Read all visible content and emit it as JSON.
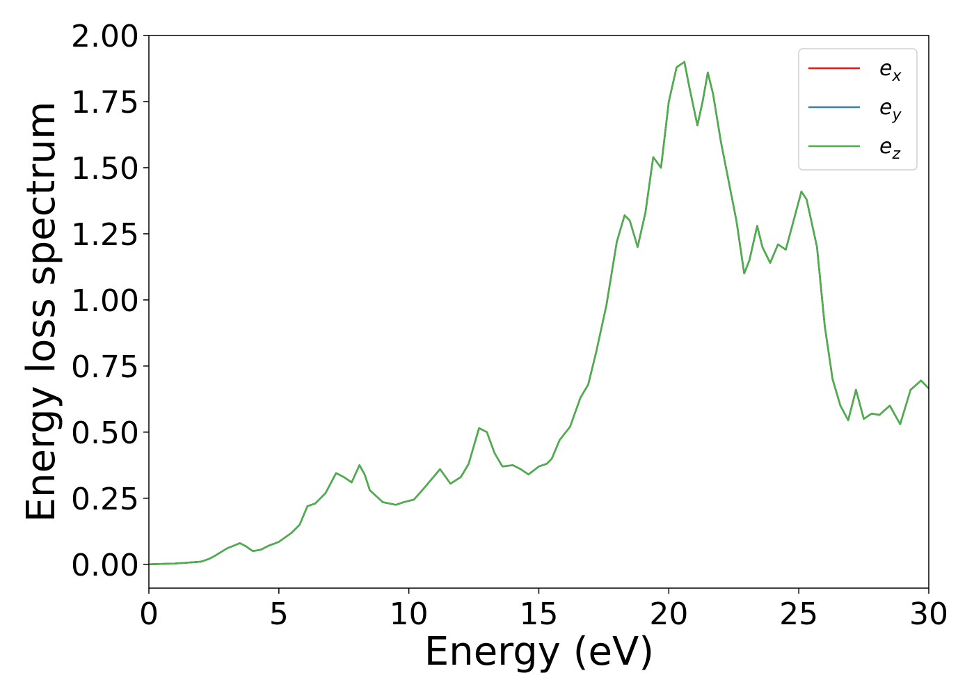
{
  "chart_data": {
    "type": "line",
    "xlabel": "Energy (eV)",
    "ylabel": "Energy loss spectrum",
    "x": [
      0,
      1,
      2,
      2.3,
      2.5,
      3,
      3.5,
      3.7,
      4,
      4.3,
      4.6,
      5,
      5.5,
      5.8,
      6.1,
      6.4,
      6.8,
      7.2,
      7.5,
      7.8,
      8.1,
      8.3,
      8.5,
      9,
      9.5,
      9.8,
      10.2,
      10.6,
      11.2,
      11.6,
      12,
      12.3,
      12.7,
      13,
      13.3,
      13.6,
      14,
      14.3,
      14.6,
      15,
      15.3,
      15.5,
      15.8,
      16.2,
      16.6,
      16.9,
      17.2,
      17.6,
      18,
      18.3,
      18.5,
      18.8,
      19.1,
      19.4,
      19.7,
      20,
      20.3,
      20.6,
      20.8,
      21.1,
      21.3,
      21.5,
      21.7,
      22,
      22.3,
      22.6,
      22.9,
      23.1,
      23.4,
      23.6,
      23.9,
      24.2,
      24.5,
      24.8,
      25.1,
      25.3,
      25.7,
      26,
      26.3,
      26.6,
      26.9,
      27.2,
      27.5,
      27.8,
      28.1,
      28.5,
      28.9,
      29.3,
      29.7,
      30
    ],
    "series": [
      {
        "name": "e_x",
        "color": "#e41a1c",
        "values": [
          0,
          0.003,
          0.01,
          0.02,
          0.03,
          0.06,
          0.08,
          0.07,
          0.05,
          0.055,
          0.07,
          0.085,
          0.12,
          0.15,
          0.22,
          0.23,
          0.27,
          0.345,
          0.33,
          0.31,
          0.375,
          0.34,
          0.28,
          0.235,
          0.225,
          0.235,
          0.245,
          0.29,
          0.36,
          0.305,
          0.33,
          0.38,
          0.515,
          0.5,
          0.42,
          0.37,
          0.375,
          0.36,
          0.34,
          0.37,
          0.38,
          0.4,
          0.47,
          0.52,
          0.63,
          0.68,
          0.8,
          0.98,
          1.22,
          1.32,
          1.3,
          1.2,
          1.33,
          1.54,
          1.5,
          1.75,
          1.88,
          1.9,
          1.8,
          1.66,
          1.75,
          1.86,
          1.78,
          1.6,
          1.45,
          1.3,
          1.1,
          1.15,
          1.28,
          1.2,
          1.14,
          1.21,
          1.19,
          1.3,
          1.41,
          1.38,
          1.2,
          0.9,
          0.7,
          0.6,
          0.545,
          0.66,
          0.55,
          0.57,
          0.565,
          0.6,
          0.53,
          0.66,
          0.695,
          0.665
        ]
      },
      {
        "name": "e_y",
        "color": "#377eb8",
        "values": [
          0,
          0.003,
          0.01,
          0.02,
          0.03,
          0.06,
          0.08,
          0.07,
          0.05,
          0.055,
          0.07,
          0.085,
          0.12,
          0.15,
          0.22,
          0.23,
          0.27,
          0.345,
          0.33,
          0.31,
          0.375,
          0.34,
          0.28,
          0.235,
          0.225,
          0.235,
          0.245,
          0.29,
          0.36,
          0.305,
          0.33,
          0.38,
          0.515,
          0.5,
          0.42,
          0.37,
          0.375,
          0.36,
          0.34,
          0.37,
          0.38,
          0.4,
          0.47,
          0.52,
          0.63,
          0.68,
          0.8,
          0.98,
          1.22,
          1.32,
          1.3,
          1.2,
          1.33,
          1.54,
          1.5,
          1.75,
          1.88,
          1.9,
          1.8,
          1.66,
          1.75,
          1.86,
          1.78,
          1.6,
          1.45,
          1.3,
          1.1,
          1.15,
          1.28,
          1.2,
          1.14,
          1.21,
          1.19,
          1.3,
          1.41,
          1.38,
          1.2,
          0.9,
          0.7,
          0.6,
          0.545,
          0.66,
          0.55,
          0.57,
          0.565,
          0.6,
          0.53,
          0.66,
          0.695,
          0.665
        ]
      },
      {
        "name": "e_z",
        "color": "#4daf4a",
        "values": [
          0,
          0.003,
          0.01,
          0.02,
          0.03,
          0.06,
          0.08,
          0.07,
          0.05,
          0.055,
          0.07,
          0.085,
          0.12,
          0.15,
          0.22,
          0.23,
          0.27,
          0.345,
          0.33,
          0.31,
          0.375,
          0.34,
          0.28,
          0.235,
          0.225,
          0.235,
          0.245,
          0.29,
          0.36,
          0.305,
          0.33,
          0.38,
          0.515,
          0.5,
          0.42,
          0.37,
          0.375,
          0.36,
          0.34,
          0.37,
          0.38,
          0.4,
          0.47,
          0.52,
          0.63,
          0.68,
          0.8,
          0.98,
          1.22,
          1.32,
          1.3,
          1.2,
          1.33,
          1.54,
          1.5,
          1.75,
          1.88,
          1.9,
          1.8,
          1.66,
          1.75,
          1.86,
          1.78,
          1.6,
          1.45,
          1.3,
          1.1,
          1.15,
          1.28,
          1.2,
          1.14,
          1.21,
          1.19,
          1.3,
          1.41,
          1.38,
          1.2,
          0.9,
          0.7,
          0.6,
          0.545,
          0.66,
          0.55,
          0.57,
          0.565,
          0.6,
          0.53,
          0.66,
          0.695,
          0.665
        ]
      }
    ],
    "xlim": [
      0,
      30
    ],
    "xticks": [
      0,
      5,
      10,
      15,
      20,
      25,
      30
    ],
    "ylim": [
      -0.09,
      2.0
    ],
    "yticks": [
      {
        "value": 0,
        "label": "0.00"
      },
      {
        "value": 0.25,
        "label": "0.25"
      },
      {
        "value": 0.5,
        "label": "0.50"
      },
      {
        "value": 0.75,
        "label": "0.75"
      },
      {
        "value": 1,
        "label": "1.00"
      },
      {
        "value": 1.25,
        "label": "1.25"
      },
      {
        "value": 1.5,
        "label": "1.50"
      },
      {
        "value": 1.75,
        "label": "1.75"
      },
      {
        "value": 2,
        "label": "2.00"
      }
    ],
    "legend": "upper right",
    "grid": false
  }
}
